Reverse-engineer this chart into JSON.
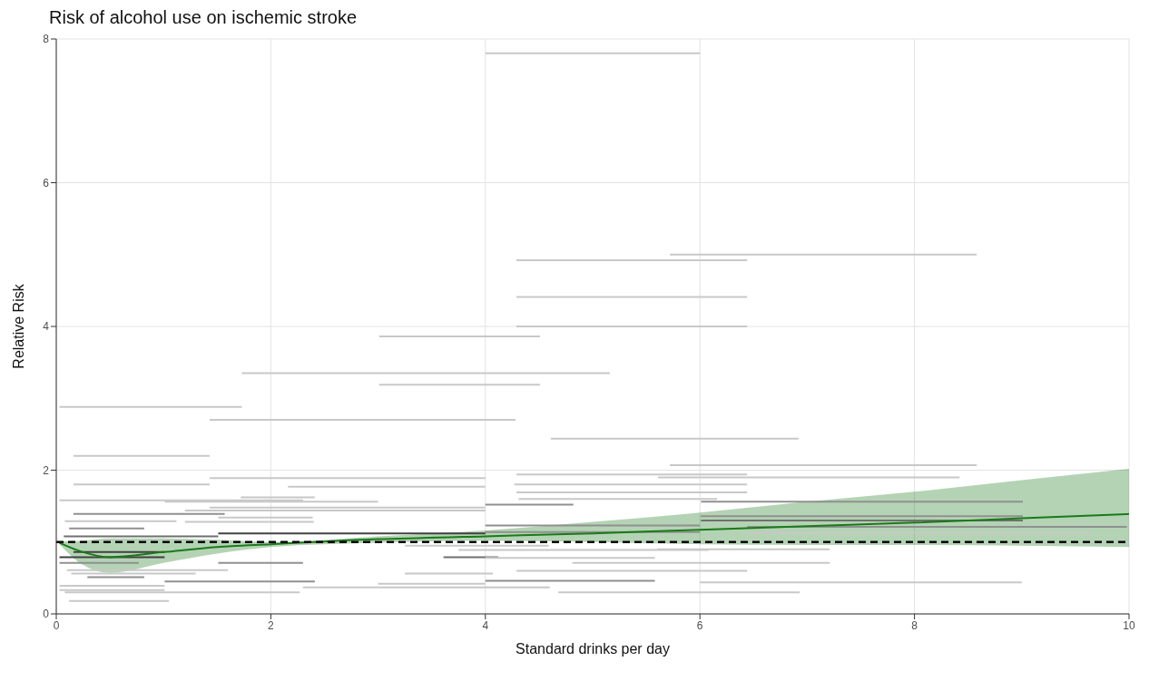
{
  "chart_data": {
    "type": "line",
    "title": "Risk of alcohol use on ischemic stroke",
    "xlabel": "Standard drinks per day",
    "ylabel": "Relative Risk",
    "xlim": [
      0,
      10
    ],
    "xticks": [
      0,
      2,
      4,
      6,
      8,
      10
    ],
    "ylim": [
      0,
      8
    ],
    "yticks": [
      0,
      2,
      4,
      6,
      8
    ],
    "grid": true,
    "ref_lines": [
      {
        "axis": "y",
        "value": 1,
        "color": "#000000",
        "line_style": "dashed"
      }
    ],
    "series": [
      {
        "color": "#c8c8c8",
        "x": [
          4.0,
          6.0
        ],
        "values": [
          7.8,
          7.8
        ]
      },
      {
        "color": "#c8c8c8",
        "x": [
          5.72,
          8.58
        ],
        "values": [
          5.0,
          5.0
        ]
      },
      {
        "color": "#c8c8c8",
        "x": [
          4.29,
          6.44
        ],
        "values": [
          4.92,
          4.92
        ]
      },
      {
        "color": "#c8c8c8",
        "x": [
          4.29,
          6.44
        ],
        "values": [
          4.41,
          4.41
        ]
      },
      {
        "color": "#c8c8c8",
        "x": [
          4.29,
          6.44
        ],
        "values": [
          4.0,
          4.0
        ]
      },
      {
        "color": "#c8c8c8",
        "x": [
          3.01,
          4.51
        ],
        "values": [
          3.86,
          3.86
        ]
      },
      {
        "color": "#c8c8c8",
        "x": [
          1.73,
          5.16
        ],
        "values": [
          3.35,
          3.35
        ]
      },
      {
        "color": "#c8c8c8",
        "x": [
          3.01,
          4.51
        ],
        "values": [
          3.19,
          3.19
        ]
      },
      {
        "color": "#c8c8c8",
        "x": [
          0.03,
          1.73
        ],
        "values": [
          2.88,
          2.88
        ]
      },
      {
        "color": "#c8c8c8",
        "x": [
          1.43,
          4.28
        ],
        "values": [
          2.7,
          2.7
        ]
      },
      {
        "color": "#c8c8c8",
        "x": [
          4.61,
          6.92
        ],
        "values": [
          2.44,
          2.44
        ]
      },
      {
        "color": "#c8c8c8",
        "x": [
          0.16,
          1.43
        ],
        "values": [
          2.2,
          2.2
        ]
      },
      {
        "color": "#c8c8c8",
        "x": [
          5.72,
          8.58
        ],
        "values": [
          2.07,
          2.07
        ]
      },
      {
        "color": "#c8c8c8",
        "x": [
          4.29,
          6.44
        ],
        "values": [
          1.94,
          1.94
        ]
      },
      {
        "color": "#c8c8c8",
        "x": [
          5.61,
          8.42
        ],
        "values": [
          1.9,
          1.9
        ]
      },
      {
        "color": "#c8c8c8",
        "x": [
          1.43,
          4.0
        ],
        "values": [
          1.89,
          1.89
        ]
      },
      {
        "color": "#c8c8c8",
        "x": [
          0.16,
          1.43
        ],
        "values": [
          1.8,
          1.8
        ]
      },
      {
        "color": "#c8c8c8",
        "x": [
          4.27,
          6.44
        ],
        "values": [
          1.8,
          1.8
        ]
      },
      {
        "color": "#c8c8c8",
        "x": [
          2.16,
          4.0
        ],
        "values": [
          1.77,
          1.77
        ]
      },
      {
        "color": "#c8c8c8",
        "x": [
          4.29,
          6.44
        ],
        "values": [
          1.69,
          1.69
        ]
      },
      {
        "color": "#c8c8c8",
        "x": [
          1.72,
          2.41
        ],
        "values": [
          1.62,
          1.62
        ]
      },
      {
        "color": "#c8c8c8",
        "x": [
          4.31,
          6.16
        ],
        "values": [
          1.6,
          1.6
        ]
      },
      {
        "color": "#c8c8c8",
        "x": [
          0.03,
          2.3
        ],
        "values": [
          1.58,
          1.58
        ]
      },
      {
        "color": "#c8c8c8",
        "x": [
          1.01,
          3.0
        ],
        "values": [
          1.56,
          1.56
        ]
      },
      {
        "color": "#909090",
        "x": [
          6.01,
          9.01
        ],
        "values": [
          1.56,
          1.56
        ]
      },
      {
        "color": "#909090",
        "x": [
          4.0,
          4.82
        ],
        "values": [
          1.52,
          1.52
        ]
      },
      {
        "color": "#c8c8c8",
        "x": [
          1.43,
          4.0
        ],
        "values": [
          1.48,
          1.48
        ]
      },
      {
        "color": "#c8c8c8",
        "x": [
          1.2,
          4.0
        ],
        "values": [
          1.44,
          1.44
        ]
      },
      {
        "color": "#909090",
        "x": [
          0.16,
          1.57
        ],
        "values": [
          1.39,
          1.39
        ]
      },
      {
        "color": "#909090",
        "x": [
          6.01,
          9.01
        ],
        "values": [
          1.36,
          1.36
        ]
      },
      {
        "color": "#c8c8c8",
        "x": [
          1.51,
          2.39
        ],
        "values": [
          1.34,
          1.34
        ]
      },
      {
        "color": "#707070",
        "x": [
          6.01,
          9.01
        ],
        "values": [
          1.3,
          1.3
        ]
      },
      {
        "color": "#c8c8c8",
        "x": [
          0.08,
          1.12
        ],
        "values": [
          1.29,
          1.29
        ]
      },
      {
        "color": "#c8c8c8",
        "x": [
          1.2,
          2.4
        ],
        "values": [
          1.28,
          1.28
        ]
      },
      {
        "color": "#909090",
        "x": [
          4.0,
          6.0
        ],
        "values": [
          1.23,
          1.23
        ]
      },
      {
        "color": "#909090",
        "x": [
          6.44,
          9.98
        ],
        "values": [
          1.21,
          1.21
        ]
      },
      {
        "color": "#909090",
        "x": [
          0.12,
          0.82
        ],
        "values": [
          1.19,
          1.19
        ]
      },
      {
        "color": "#909090",
        "x": [
          4.0,
          6.0
        ],
        "values": [
          1.14,
          1.14
        ]
      },
      {
        "color": "#c8c8c8",
        "x": [
          6.44,
          9.65
        ],
        "values": [
          1.13,
          1.13
        ]
      },
      {
        "color": "#404040",
        "x": [
          1.51,
          4.0
        ],
        "values": [
          1.12,
          1.12
        ]
      },
      {
        "color": "#707070",
        "x": [
          0.07,
          1.51
        ],
        "values": [
          1.08,
          1.08
        ]
      },
      {
        "color": "#c8c8c8",
        "x": [
          3.25,
          4.59
        ],
        "values": [
          0.95,
          0.95
        ]
      },
      {
        "color": "#c8c8c8",
        "x": [
          5.6,
          7.21
        ],
        "values": [
          0.9,
          0.9
        ]
      },
      {
        "color": "#c8c8c8",
        "x": [
          3.75,
          6.08
        ],
        "values": [
          0.89,
          0.89
        ]
      },
      {
        "color": "#404040",
        "x": [
          0.16,
          1.01
        ],
        "values": [
          0.86,
          0.86
        ]
      },
      {
        "color": "#404040",
        "x": [
          0.03,
          1.01
        ],
        "values": [
          0.79,
          0.79
        ]
      },
      {
        "color": "#707070",
        "x": [
          3.61,
          4.12
        ],
        "values": [
          0.79,
          0.79
        ]
      },
      {
        "color": "#c8c8c8",
        "x": [
          4.0,
          5.58
        ],
        "values": [
          0.78,
          0.78
        ]
      },
      {
        "color": "#909090",
        "x": [
          0.03,
          0.77
        ],
        "values": [
          0.71,
          0.71
        ]
      },
      {
        "color": "#909090",
        "x": [
          1.51,
          2.3
        ],
        "values": [
          0.71,
          0.71
        ]
      },
      {
        "color": "#c8c8c8",
        "x": [
          4.81,
          7.21
        ],
        "values": [
          0.71,
          0.71
        ]
      },
      {
        "color": "#c8c8c8",
        "x": [
          0.1,
          1.6
        ],
        "values": [
          0.61,
          0.61
        ]
      },
      {
        "color": "#c8c8c8",
        "x": [
          4.29,
          6.44
        ],
        "values": [
          0.6,
          0.6
        ]
      },
      {
        "color": "#c8c8c8",
        "x": [
          0.14,
          1.3
        ],
        "values": [
          0.56,
          0.56
        ]
      },
      {
        "color": "#c8c8c8",
        "x": [
          3.25,
          4.07
        ],
        "values": [
          0.56,
          0.56
        ]
      },
      {
        "color": "#909090",
        "x": [
          0.29,
          0.82
        ],
        "values": [
          0.51,
          0.51
        ]
      },
      {
        "color": "#909090",
        "x": [
          4.0,
          5.58
        ],
        "values": [
          0.46,
          0.46
        ]
      },
      {
        "color": "#909090",
        "x": [
          1.01,
          2.41
        ],
        "values": [
          0.45,
          0.45
        ]
      },
      {
        "color": "#c8c8c8",
        "x": [
          6.0,
          9.0
        ],
        "values": [
          0.44,
          0.44
        ]
      },
      {
        "color": "#c8c8c8",
        "x": [
          3.0,
          4.0
        ],
        "values": [
          0.42,
          0.42
        ]
      },
      {
        "color": "#c8c8c8",
        "x": [
          0.03,
          1.01
        ],
        "values": [
          0.39,
          0.39
        ]
      },
      {
        "color": "#c8c8c8",
        "x": [
          2.3,
          4.6
        ],
        "values": [
          0.37,
          0.37
        ]
      },
      {
        "color": "#c8c8c8",
        "x": [
          0.03,
          1.01
        ],
        "values": [
          0.33,
          0.33
        ]
      },
      {
        "color": "#c8c8c8",
        "x": [
          0.08,
          2.27
        ],
        "values": [
          0.3,
          0.3
        ]
      },
      {
        "color": "#c8c8c8",
        "x": [
          4.68,
          6.93
        ],
        "values": [
          0.3,
          0.3
        ]
      },
      {
        "color": "#c8c8c8",
        "x": [
          0.12,
          1.05
        ],
        "values": [
          0.18,
          0.18
        ]
      },
      {
        "color": "#1a7a1a",
        "x": [
          0.03,
          0.25,
          0.5,
          1.0,
          1.5,
          2.0,
          3.0,
          4.0,
          5.0,
          6.0,
          7.0,
          8.0,
          9.0,
          10.0
        ],
        "values": [
          0.99,
          0.86,
          0.79,
          0.86,
          0.93,
          0.97,
          1.04,
          1.08,
          1.12,
          1.17,
          1.22,
          1.27,
          1.33,
          1.39
        ],
        "lower": [
          0.97,
          0.68,
          0.57,
          0.71,
          0.84,
          0.93,
          0.99,
          1.02,
          1.0,
          0.97,
          0.96,
          0.96,
          0.95,
          0.93
        ],
        "upper": [
          1.01,
          1.02,
          1.05,
          1.05,
          1.03,
          1.0,
          1.08,
          1.16,
          1.28,
          1.41,
          1.56,
          1.7,
          1.86,
          2.02
        ]
      }
    ]
  }
}
